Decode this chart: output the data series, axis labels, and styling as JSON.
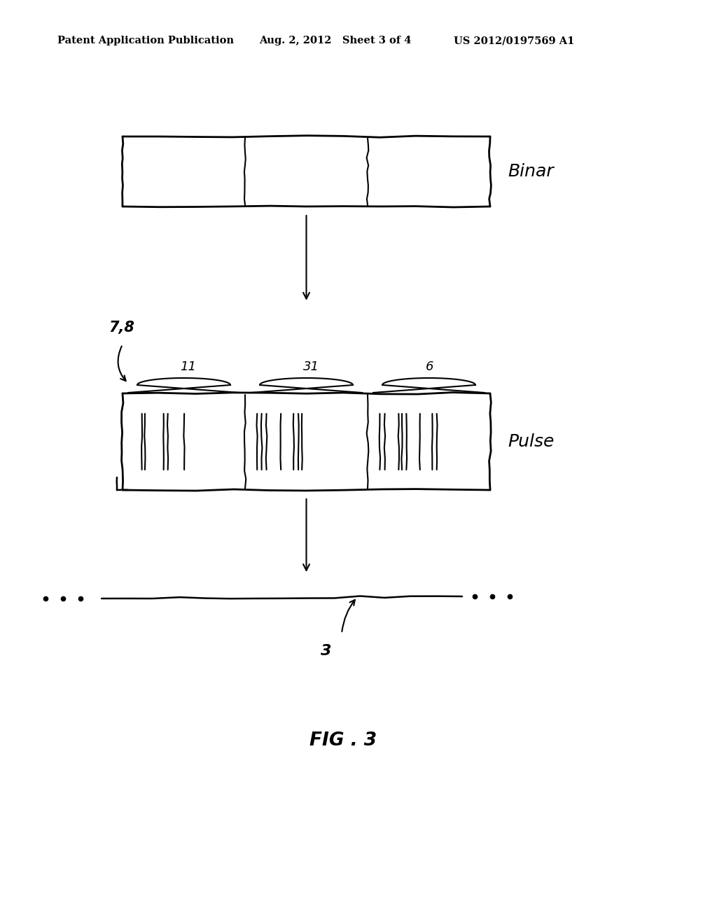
{
  "header_left": "Patent Application Publication",
  "header_mid": "Aug. 2, 2012   Sheet 3 of 4",
  "header_right": "US 2012/0197569 A1",
  "fig_label": "FIG . 3",
  "binary_label": "Binar",
  "pulse_label": "Pulse",
  "section_labels": [
    "11",
    "31",
    "6"
  ],
  "label_78": "7,8",
  "label_3": "3",
  "bg_color": "#ffffff",
  "line_color": "#000000"
}
